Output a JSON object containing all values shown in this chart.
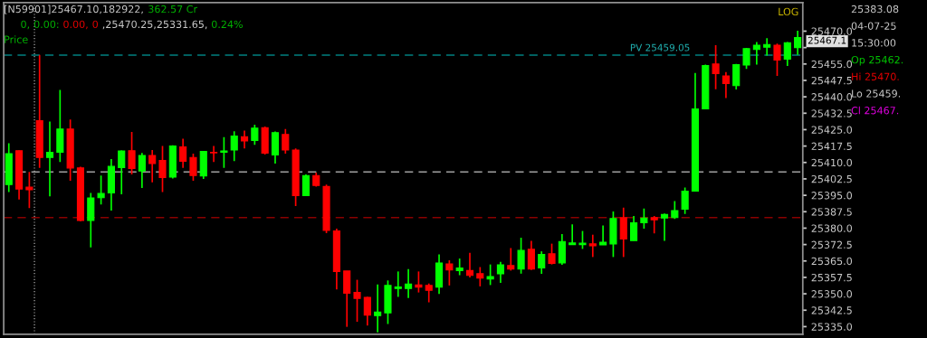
{
  "chart_data": {
    "type": "candlestick",
    "categories": [
      null,
      null,
      null,
      null,
      null,
      null,
      null,
      null,
      null,
      null,
      null,
      null,
      null,
      null,
      null,
      null,
      null,
      null,
      null,
      null,
      null,
      null,
      null,
      null,
      null,
      null,
      null,
      null,
      null,
      null,
      null,
      null,
      null,
      null,
      null,
      null,
      null,
      null,
      null,
      null,
      null,
      null,
      null,
      null,
      null,
      null,
      null,
      null,
      null,
      null,
      null,
      null,
      null,
      null,
      null,
      null,
      null,
      null,
      null,
      null,
      null,
      null,
      null,
      null,
      null,
      null,
      null,
      null,
      null,
      null,
      null,
      null,
      null,
      null,
      null,
      null,
      null,
      null
    ],
    "ohlc": [
      [
        25399.9,
        25418.8,
        25396.5,
        25414.0
      ],
      [
        25415.4,
        25415.5,
        25393.1,
        25397.9
      ],
      [
        25398.7,
        25405.7,
        25389.2,
        25397.5
      ],
      [
        25429.1,
        25459.1,
        25407.5,
        25412.3
      ],
      [
        25412.3,
        25428.7,
        25394.5,
        25414.6
      ],
      [
        25414.7,
        25443.1,
        25410.2,
        25425.3
      ],
      [
        25425.3,
        25429.6,
        25401.7,
        25407.5
      ],
      [
        25407.5,
        25408.0,
        25383.2,
        25383.5
      ],
      [
        25383.5,
        25396.1,
        25371.2,
        25393.8
      ],
      [
        25393.9,
        25404.0,
        25390.8,
        25395.8
      ],
      [
        25396.1,
        25411.6,
        25388.0,
        25408.2
      ],
      [
        25407.7,
        25415.5,
        25395.5,
        25415.3
      ],
      [
        25415.4,
        25423.9,
        25404.5,
        25407.2
      ],
      [
        25406.1,
        25414.3,
        25398.3,
        25413.2
      ],
      [
        25413.2,
        25415.7,
        25400.9,
        25409.5
      ],
      [
        25410.9,
        25417.5,
        25396.5,
        25403.1
      ],
      [
        25403.3,
        25417.9,
        25402.7,
        25417.5
      ],
      [
        25417.1,
        25420.8,
        25407.5,
        25410.6
      ],
      [
        25412.3,
        25414.0,
        25401.7,
        25404.0
      ],
      [
        25403.8,
        25415.3,
        25402.5,
        25415.0
      ],
      [
        25414.6,
        25417.5,
        25410.2,
        25414.4
      ],
      [
        25414.7,
        25421.6,
        25407.5,
        25415.3
      ],
      [
        25415.7,
        25424.3,
        25410.6,
        25422.1
      ],
      [
        25421.8,
        25424.6,
        25416.4,
        25419.8
      ],
      [
        25420.1,
        25427.3,
        25418.1,
        25425.7
      ],
      [
        25425.9,
        25426.4,
        25413.6,
        25414.3
      ],
      [
        25413.4,
        25424.2,
        25409.5,
        25423.6
      ],
      [
        25422.8,
        25425.3,
        25414.0,
        25415.7
      ],
      [
        25415.7,
        25416.4,
        25390.1,
        25394.9
      ],
      [
        25394.9,
        25404.5,
        25394.6,
        25404.0
      ],
      [
        25404.0,
        25405.4,
        25399.0,
        25399.5
      ],
      [
        25399.0,
        25399.9,
        25377.7,
        25379.0
      ],
      [
        25378.7,
        25379.8,
        25352.0,
        25360.2
      ],
      [
        25360.4,
        25360.4,
        25334.9,
        25350.3
      ],
      [
        25350.6,
        25356.4,
        25337.2,
        25347.9
      ],
      [
        25348.4,
        25348.6,
        25335.5,
        25340.3
      ],
      [
        25340.0,
        25354.3,
        25332.4,
        25341.7
      ],
      [
        25341.3,
        25356.1,
        25336.2,
        25353.8
      ],
      [
        25352.4,
        25360.2,
        25348.6,
        25353.1
      ],
      [
        25352.4,
        25361.3,
        25348.1,
        25354.4
      ],
      [
        25354.0,
        25360.2,
        25350.6,
        25353.1
      ],
      [
        25353.8,
        25354.7,
        25346.1,
        25351.6
      ],
      [
        25353.1,
        25368.0,
        25349.9,
        25364.1
      ],
      [
        25363.6,
        25365.3,
        25353.8,
        25360.9
      ],
      [
        25360.6,
        25366.1,
        25358.5,
        25361.8
      ],
      [
        25360.6,
        25368.7,
        25357.5,
        25358.4
      ],
      [
        25359.2,
        25362.2,
        25353.4,
        25357.2
      ],
      [
        25356.8,
        25363.4,
        25354.0,
        25357.9
      ],
      [
        25359.1,
        25364.6,
        25355.0,
        25363.2
      ],
      [
        25362.9,
        25370.9,
        25360.6,
        25361.3
      ],
      [
        25361.3,
        25375.6,
        25359.2,
        25369.8
      ],
      [
        25370.3,
        25374.2,
        25360.9,
        25361.3
      ],
      [
        25361.8,
        25369.4,
        25359.1,
        25368.0
      ],
      [
        25368.3,
        25372.9,
        25363.4,
        25363.9
      ],
      [
        25364.1,
        25377.3,
        25363.2,
        25373.9
      ],
      [
        25372.5,
        25381.7,
        25372.5,
        25373.2
      ],
      [
        25372.5,
        25378.7,
        25370.5,
        25373.1
      ],
      [
        25372.8,
        25377.0,
        25366.8,
        25371.9
      ],
      [
        25372.4,
        25381.2,
        25372.4,
        25373.6
      ],
      [
        25372.8,
        25387.6,
        25366.8,
        25384.4
      ],
      [
        25384.8,
        25389.4,
        25366.8,
        25375.0
      ],
      [
        25374.3,
        25385.5,
        25374.3,
        25382.4
      ],
      [
        25382.5,
        25389.0,
        25379.8,
        25384.6
      ],
      [
        25384.8,
        25385.5,
        25377.6,
        25383.8
      ],
      [
        25384.6,
        25386.7,
        25374.2,
        25386.2
      ],
      [
        25384.8,
        25392.4,
        25384.2,
        25388.0
      ],
      [
        25388.7,
        25398.6,
        25386.5,
        25396.9
      ],
      [
        25396.9,
        25450.9,
        25396.9,
        25434.5
      ],
      [
        25434.5,
        25454.7,
        25434.5,
        25454.3
      ],
      [
        25455.0,
        25463.6,
        25443.5,
        25450.6
      ],
      [
        25449.5,
        25451.3,
        25439.4,
        25446.1
      ],
      [
        25445.1,
        25455.0,
        25443.4,
        25454.7
      ],
      [
        25454.5,
        25462.3,
        25452.7,
        25462.0
      ],
      [
        25461.6,
        25465.0,
        25454.7,
        25463.6
      ],
      [
        25462.7,
        25466.8,
        25458.8,
        25463.9
      ],
      [
        25463.6,
        25464.3,
        25449.5,
        25456.8
      ],
      [
        25457.2,
        25465.0,
        25454.1,
        25464.7
      ],
      [
        25462.5,
        25470.2,
        25459.1,
        25467.1
      ]
    ],
    "ylim": [
      25331.5,
      25483
    ],
    "yticks": [
      {
        "value": 25335,
        "label": "25335.0"
      },
      {
        "value": 25342.5,
        "label": "25342.5"
      },
      {
        "value": 25350,
        "label": "25350.0"
      },
      {
        "value": 25357.5,
        "label": "25357.5"
      },
      {
        "value": 25365,
        "label": "25365.0"
      },
      {
        "value": 25372.5,
        "label": "25372.5"
      },
      {
        "value": 25380,
        "label": "25380.0"
      },
      {
        "value": 25387.5,
        "label": "25387.5"
      },
      {
        "value": 25395,
        "label": "25395.0"
      },
      {
        "value": 25402.5,
        "label": "25402.5"
      },
      {
        "value": 25410,
        "label": "25410.0"
      },
      {
        "value": 25417.5,
        "label": "25417.5"
      },
      {
        "value": 25425,
        "label": "25425.0"
      },
      {
        "value": 25432.5,
        "label": "25432.5"
      },
      {
        "value": 25440,
        "label": "25440.0"
      },
      {
        "value": 25447.5,
        "label": "25447.5"
      },
      {
        "value": 25455,
        "label": "25455.0"
      },
      {
        "value": 25462.5,
        "label": null
      },
      {
        "value": 25470,
        "label": "25470.0"
      }
    ],
    "tick_labels": "y",
    "grid": false,
    "ref_lines": [
      {
        "axis": "y",
        "value": 25459.05,
        "label": "PV 25459.05",
        "color": "#008080",
        "line_style": "dashed"
      },
      {
        "axis": "y",
        "value": 25405.7,
        "color": "#a0a0a0",
        "line_style": "dashed"
      },
      {
        "axis": "y",
        "value": 25384.8,
        "color": "#8b0000",
        "line_style": "dashed"
      }
    ],
    "annotations": [
      "[N59901]25467.10,182922,",
      "362.57 Cr",
      "0,",
      "0.00:",
      "0.00,",
      "0",
      ",25470.25,25331.65,",
      "0.24%",
      "Price",
      "LOG",
      "25467.1",
      "25383.08",
      "04-07-25",
      "15:30:00",
      "Op 25462.",
      "Hi 25470.",
      "Lo 25459.",
      "Cl 25467."
    ]
  }
}
